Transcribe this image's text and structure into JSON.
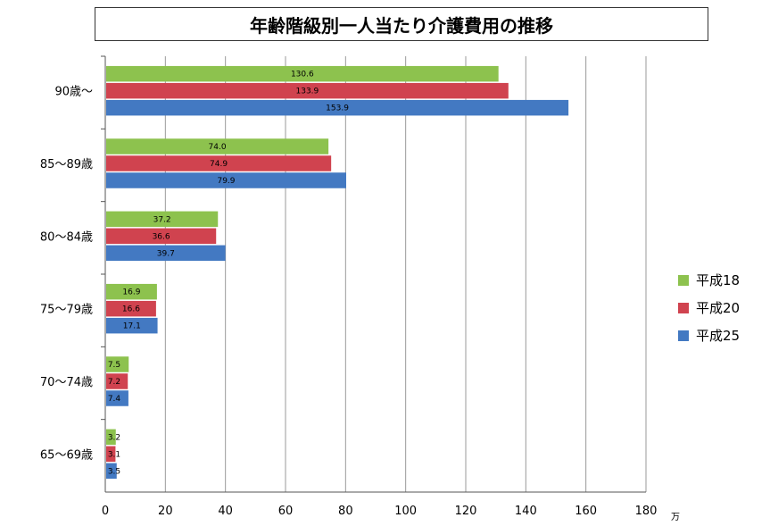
{
  "chart_data": {
    "type": "bar",
    "orientation": "horizontal",
    "title": "年齢階級別一人当たり介護費用の推移",
    "categories": [
      "90歳～",
      "85～89歳",
      "80～84歳",
      "75～79歳",
      "70～74歳",
      "65～69歳"
    ],
    "series": [
      {
        "name": "平成18",
        "color": "#8dc24e",
        "values": [
          130.6,
          74.0,
          37.2,
          16.9,
          7.5,
          3.2
        ],
        "labels": [
          "130.6",
          "74.0",
          "37.2",
          "16.9",
          "7.5",
          "3.2"
        ]
      },
      {
        "name": "平成20",
        "color": "#d0434f",
        "values": [
          133.9,
          74.9,
          36.6,
          16.6,
          7.2,
          3.1
        ],
        "labels": [
          "133.9",
          "74.9",
          "36.6",
          "16.6",
          "7.2",
          "3.1"
        ]
      },
      {
        "name": "平成25",
        "color": "#4379c2",
        "values": [
          153.9,
          79.9,
          39.7,
          17.1,
          7.4,
          3.5
        ],
        "labels": [
          "153.9",
          "79.9",
          "39.7",
          "17.1",
          "7.4",
          "3.5"
        ]
      }
    ],
    "xlim": [
      0,
      180
    ],
    "xticks": [
      "0",
      "20",
      "40",
      "60",
      "80",
      "100",
      "120",
      "140",
      "160",
      "180"
    ],
    "xunit": "万",
    "grid": true,
    "legend_position": "right"
  }
}
